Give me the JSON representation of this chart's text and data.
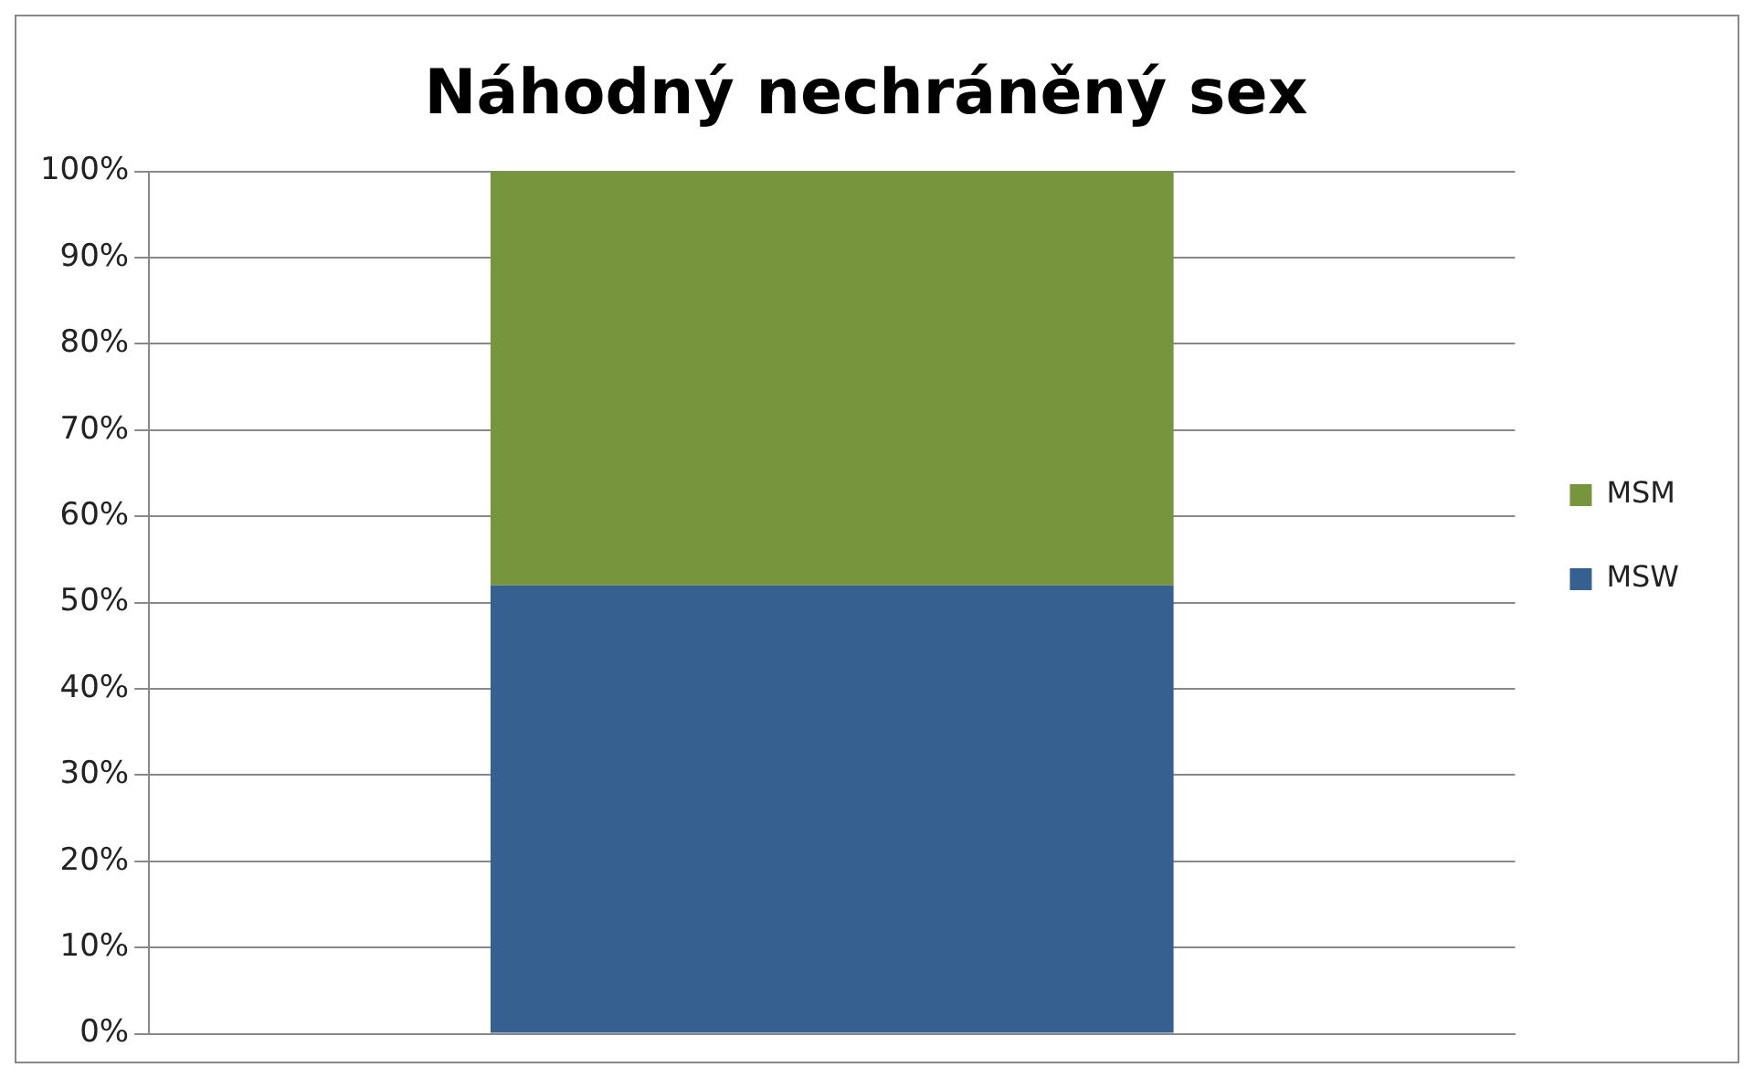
{
  "chart_data": {
    "type": "bar",
    "title": "Náhodný nechráněný sex",
    "categories": [
      null
    ],
    "stacked": true,
    "series": [
      {
        "name": "MSW",
        "color": "#35608f",
        "values": [
          52
        ]
      },
      {
        "name": "MSM",
        "color": "#77953d",
        "values": [
          48
        ]
      }
    ],
    "ylim": [
      0,
      100
    ],
    "yticks": [
      {
        "value": 0,
        "label": "0%"
      },
      {
        "value": 10,
        "label": "10%"
      },
      {
        "value": 20,
        "label": "20%"
      },
      {
        "value": 30,
        "label": "30%"
      },
      {
        "value": 40,
        "label": "40%"
      },
      {
        "value": 50,
        "label": "50%"
      },
      {
        "value": 60,
        "label": "60%"
      },
      {
        "value": 70,
        "label": "70%"
      },
      {
        "value": 80,
        "label": "80%"
      },
      {
        "value": 90,
        "label": "90%"
      },
      {
        "value": 100,
        "label": "100%"
      }
    ],
    "grid": "y",
    "legend": "right"
  }
}
